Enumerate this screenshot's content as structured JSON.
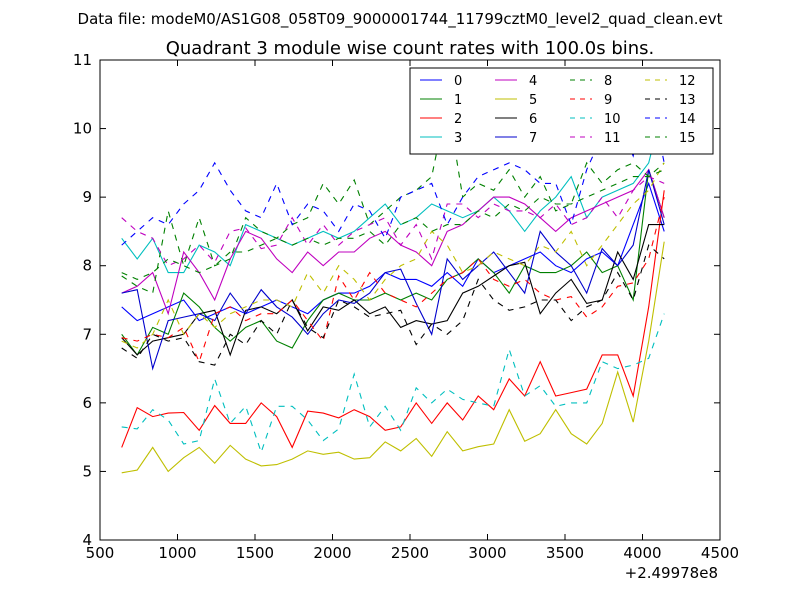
{
  "chart_data": {
    "type": "line",
    "suptitle": "Data file: modeM0/AS1G08_058T09_9000001744_11799cztM0_level2_quad_clean.evt",
    "title": "Quadrant 3 module wise count rates with 100.0s bins.",
    "xlabel": "",
    "ylabel": "",
    "x_offset_label": "+2.49978e8",
    "xlim": [
      500,
      4500
    ],
    "ylim": [
      4,
      11
    ],
    "xticks": [
      500,
      1000,
      1500,
      2000,
      2500,
      3000,
      3500,
      4000,
      4500
    ],
    "xtick_labels": [
      "500",
      "1000",
      "1500",
      "2000",
      "2500",
      "3000",
      "3500",
      "4000",
      "4500"
    ],
    "yticks": [
      4,
      5,
      6,
      7,
      8,
      9,
      10,
      11
    ],
    "ytick_labels": [
      "4",
      "5",
      "6",
      "7",
      "8",
      "9",
      "10",
      "11"
    ],
    "grid": false,
    "legend_position": "top-right",
    "x": [
      640,
      740,
      840,
      940,
      1040,
      1140,
      1240,
      1340,
      1440,
      1540,
      1640,
      1740,
      1840,
      1940,
      2040,
      2140,
      2240,
      2340,
      2440,
      2540,
      2640,
      2740,
      2840,
      2940,
      3040,
      3140,
      3240,
      3340,
      3440,
      3540,
      3640,
      3740,
      3840,
      3940,
      4040,
      4140
    ],
    "series": [
      {
        "name": "0",
        "color": "#0000ff",
        "dash": "solid",
        "values": [
          7.4,
          7.2,
          7.3,
          7.4,
          7.5,
          7.2,
          7.3,
          7.4,
          7.3,
          7.4,
          7.5,
          7.4,
          7.3,
          7.5,
          7.6,
          7.6,
          7.7,
          7.9,
          7.8,
          7.8,
          7.7,
          7.9,
          7.7,
          8.1,
          7.9,
          8.0,
          8.1,
          8.2,
          8.0,
          7.9,
          8.1,
          8.2,
          8.0,
          8.6,
          9.2,
          8.5
        ]
      },
      {
        "name": "1",
        "color": "#008000",
        "dash": "solid",
        "values": [
          7.0,
          6.7,
          7.1,
          7.0,
          7.6,
          7.4,
          7.1,
          6.9,
          7.1,
          7.2,
          6.9,
          6.8,
          7.2,
          7.5,
          7.6,
          7.5,
          7.5,
          7.6,
          7.5,
          7.6,
          7.5,
          7.8,
          7.9,
          8.1,
          7.9,
          7.6,
          8.0,
          7.9,
          7.9,
          8.0,
          8.2,
          7.9,
          8.0,
          7.5,
          9.4,
          8.7
        ]
      },
      {
        "name": "2",
        "color": "#ff0000",
        "dash": "solid",
        "values": [
          5.35,
          5.93,
          5.8,
          5.85,
          5.86,
          5.6,
          5.96,
          5.7,
          5.7,
          6.0,
          5.8,
          5.35,
          5.88,
          5.85,
          5.78,
          5.9,
          5.8,
          5.6,
          5.65,
          6.0,
          5.7,
          6.0,
          5.75,
          6.1,
          5.9,
          6.35,
          6.1,
          6.6,
          6.1,
          6.15,
          6.2,
          6.7,
          6.7,
          6.1,
          7.4,
          9.1
        ]
      },
      {
        "name": "3",
        "color": "#00bfbf",
        "dash": "solid",
        "values": [
          8.4,
          8.1,
          8.4,
          7.9,
          7.9,
          8.3,
          8.2,
          8.0,
          8.6,
          8.5,
          8.4,
          8.3,
          8.4,
          8.5,
          8.4,
          8.5,
          8.7,
          8.9,
          8.6,
          8.7,
          8.9,
          8.8,
          8.7,
          8.8,
          9.0,
          8.8,
          8.5,
          8.8,
          9.0,
          9.3,
          8.7,
          9.0,
          9.1,
          9.2,
          9.5,
          10.4
        ]
      },
      {
        "name": "4",
        "color": "#bf00bf",
        "dash": "solid",
        "values": [
          7.6,
          7.7,
          7.9,
          7.3,
          8.2,
          7.9,
          7.5,
          8.1,
          8.5,
          8.4,
          8.1,
          7.9,
          8.2,
          8.0,
          8.2,
          8.2,
          8.4,
          8.5,
          8.3,
          8.2,
          8.0,
          8.5,
          8.6,
          8.8,
          9.0,
          9.0,
          8.9,
          8.7,
          8.5,
          8.7,
          8.8,
          8.9,
          9.0,
          9.1,
          9.4,
          8.7
        ]
      },
      {
        "name": "5",
        "color": "#bfbf00",
        "dash": "solid",
        "values": [
          4.98,
          5.02,
          5.35,
          5.0,
          5.2,
          5.35,
          5.12,
          5.38,
          5.18,
          5.08,
          5.1,
          5.18,
          5.3,
          5.25,
          5.28,
          5.18,
          5.2,
          5.43,
          5.3,
          5.48,
          5.22,
          5.58,
          5.3,
          5.36,
          5.4,
          5.9,
          5.44,
          5.55,
          5.9,
          5.55,
          5.4,
          5.7,
          6.45,
          5.72,
          6.9,
          8.35
        ]
      },
      {
        "name": "6",
        "color": "#000000",
        "dash": "solid",
        "values": [
          6.95,
          6.7,
          6.9,
          6.95,
          7.0,
          7.3,
          7.35,
          6.7,
          7.35,
          7.4,
          7.3,
          7.5,
          7.05,
          7.4,
          7.35,
          7.5,
          7.3,
          7.4,
          7.1,
          7.2,
          7.15,
          7.2,
          7.6,
          7.7,
          7.85,
          8.0,
          8.05,
          7.3,
          7.6,
          7.8,
          7.45,
          7.5,
          8.2,
          7.8,
          8.6,
          8.6
        ]
      },
      {
        "name": "7",
        "color": "#0000cc",
        "dash": "solid",
        "values": [
          7.6,
          7.65,
          6.5,
          7.2,
          7.25,
          7.3,
          7.2,
          7.6,
          7.3,
          7.65,
          7.4,
          7.25,
          7.0,
          7.3,
          7.5,
          7.45,
          7.6,
          7.9,
          7.95,
          7.45,
          7.0,
          8.1,
          7.8,
          8.0,
          8.2,
          7.9,
          7.6,
          8.5,
          8.2,
          8.0,
          7.6,
          8.25,
          8.0,
          8.3,
          9.4,
          8.6
        ]
      },
      {
        "name": "8",
        "color": "#008000",
        "dash": "dashed",
        "values": [
          7.85,
          7.7,
          7.6,
          8.8,
          8.0,
          8.7,
          8.0,
          8.1,
          8.7,
          8.5,
          8.4,
          8.6,
          8.7,
          9.2,
          8.9,
          9.25,
          8.6,
          8.8,
          9.0,
          9.1,
          9.3,
          10.4,
          9.0,
          9.2,
          9.1,
          9.4,
          9.0,
          9.3,
          8.8,
          8.9,
          9.5,
          9.2,
          9.4,
          9.5,
          9.3,
          9.5
        ]
      },
      {
        "name": "9",
        "color": "#ff0000",
        "dash": "dashed",
        "values": [
          6.95,
          6.9,
          7.0,
          6.95,
          7.1,
          6.6,
          7.3,
          7.4,
          7.2,
          7.3,
          7.3,
          7.5,
          7.2,
          6.9,
          7.85,
          7.5,
          7.9,
          7.6,
          7.5,
          7.4,
          7.6,
          7.8,
          7.9,
          8.1,
          7.8,
          7.7,
          7.8,
          7.6,
          7.5,
          7.55,
          7.25,
          7.4,
          7.7,
          7.75,
          8.1,
          9.0
        ]
      },
      {
        "name": "10",
        "color": "#00bfbf",
        "dash": "dashed",
        "values": [
          5.65,
          5.62,
          5.9,
          5.75,
          5.4,
          5.45,
          6.35,
          5.7,
          5.95,
          5.28,
          5.95,
          5.95,
          5.75,
          5.45,
          5.62,
          6.42,
          5.65,
          5.95,
          5.6,
          6.22,
          6.0,
          6.2,
          6.05,
          6.0,
          5.95,
          6.78,
          6.1,
          6.25,
          5.95,
          6.0,
          6.0,
          6.6,
          6.5,
          6.55,
          6.65,
          7.3
        ]
      },
      {
        "name": "11",
        "color": "#bf00bf",
        "dash": "dashed",
        "values": [
          8.7,
          8.5,
          8.4,
          8.0,
          8.1,
          8.3,
          8.05,
          8.5,
          8.55,
          8.25,
          8.3,
          8.7,
          8.3,
          8.6,
          8.3,
          8.5,
          8.6,
          8.7,
          8.3,
          8.6,
          8.1,
          8.9,
          8.9,
          8.7,
          8.9,
          8.8,
          8.8,
          8.7,
          8.9,
          8.6,
          8.7,
          9.0,
          8.7,
          9.1,
          9.3,
          9.2
        ]
      },
      {
        "name": "12",
        "color": "#bfbf00",
        "dash": "dashed",
        "values": [
          6.9,
          6.8,
          7.0,
          7.5,
          7.0,
          7.3,
          7.1,
          7.3,
          7.4,
          7.5,
          7.5,
          7.4,
          7.9,
          7.6,
          8.0,
          7.8,
          7.5,
          7.8,
          8.0,
          8.1,
          8.5,
          8.3,
          7.9,
          8.0,
          8.2,
          8.1,
          8.0,
          8.3,
          8.2,
          8.5,
          8.0,
          8.3,
          8.6,
          8.9,
          9.1,
          9.5
        ]
      },
      {
        "name": "13",
        "color": "#000000",
        "dash": "dashed",
        "values": [
          6.8,
          6.65,
          7.0,
          6.9,
          6.95,
          6.6,
          6.55,
          7.0,
          6.85,
          7.2,
          7.0,
          7.5,
          7.1,
          6.95,
          7.5,
          7.4,
          7.25,
          7.3,
          7.35,
          6.85,
          7.15,
          7.0,
          7.2,
          7.8,
          7.5,
          7.35,
          7.4,
          7.5,
          7.5,
          7.2,
          7.4,
          7.5,
          7.9,
          7.5,
          8.3,
          8.1
        ]
      },
      {
        "name": "14",
        "color": "#0000ff",
        "dash": "dashed",
        "values": [
          8.3,
          8.5,
          8.7,
          8.6,
          8.9,
          9.1,
          9.5,
          9.1,
          8.8,
          8.7,
          9.2,
          8.6,
          8.9,
          8.8,
          8.5,
          8.9,
          8.8,
          8.4,
          9.0,
          9.1,
          9.2,
          8.6,
          9.0,
          9.3,
          9.4,
          9.5,
          9.4,
          9.2,
          9.2,
          8.6,
          9.4,
          9.9,
          10.1,
          9.6,
          10.6,
          9.5
        ]
      },
      {
        "name": "15",
        "color": "#008000",
        "dash": "dashed",
        "values": [
          7.9,
          7.8,
          7.9,
          8.1,
          8.0,
          7.9,
          8.0,
          8.2,
          8.2,
          8.3,
          8.4,
          8.3,
          8.4,
          8.3,
          8.4,
          8.4,
          8.5,
          8.3,
          8.6,
          8.7,
          8.5,
          8.6,
          8.6,
          8.8,
          8.7,
          8.9,
          8.8,
          9.0,
          8.9,
          8.9,
          9.0,
          9.1,
          9.2,
          9.3,
          9.3,
          9.4
        ]
      }
    ]
  }
}
